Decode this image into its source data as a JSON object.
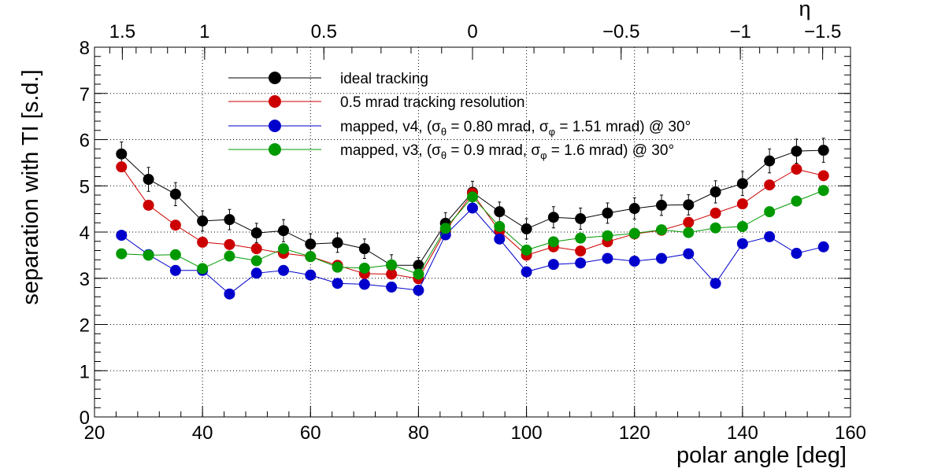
{
  "chart_data": {
    "type": "scatter",
    "xlabel": "polar angle [deg]",
    "ylabel": "separation with TI [s.d.]",
    "xlim": [
      20,
      160
    ],
    "ylim": [
      0,
      8
    ],
    "x_ticks": [
      "20",
      "40",
      "60",
      "80",
      "100",
      "120",
      "140",
      "160"
    ],
    "y_ticks": [
      "0",
      "1",
      "2",
      "3",
      "4",
      "5",
      "6",
      "7",
      "8"
    ],
    "grid": true,
    "legend_position": "top-center",
    "top_axis": {
      "label": "η",
      "ticks": [
        {
          "value": 1.5,
          "label": "1.5"
        },
        {
          "value": 1,
          "label": "1"
        },
        {
          "value": 0.5,
          "label": "0.5"
        },
        {
          "value": 0,
          "label": "0"
        },
        {
          "value": -0.5,
          "label": "−0.5"
        },
        {
          "value": -1,
          "label": "−1"
        },
        {
          "value": -1.5,
          "label": "−1.5"
        }
      ]
    },
    "x": [
      25,
      30,
      35,
      40,
      45,
      50,
      55,
      60,
      65,
      70,
      75,
      80,
      85,
      90,
      95,
      100,
      105,
      110,
      115,
      120,
      125,
      130,
      135,
      140,
      145,
      150,
      155
    ],
    "series": [
      {
        "name": "ideal tracking",
        "color": "#000000",
        "values": [
          5.69,
          5.14,
          4.82,
          4.24,
          4.27,
          3.98,
          4.03,
          3.74,
          3.77,
          3.64,
          3.28,
          3.28,
          4.19,
          4.86,
          4.44,
          4.07,
          4.32,
          4.29,
          4.41,
          4.51,
          4.58,
          4.59,
          4.87,
          5.05,
          5.54,
          5.75,
          5.77
        ],
        "errors": [
          0.26,
          0.26,
          0.25,
          0.22,
          0.22,
          0.21,
          0.24,
          0.22,
          0.21,
          0.21,
          0.23,
          0.17,
          0.23,
          0.24,
          0.21,
          0.22,
          0.23,
          0.23,
          0.22,
          0.23,
          0.22,
          0.22,
          0.24,
          0.26,
          0.26,
          0.26,
          0.26
        ]
      },
      {
        "name": "0.5 mrad tracking resolution",
        "color": "#cc0000",
        "values": [
          5.41,
          4.58,
          4.15,
          3.78,
          3.73,
          3.64,
          3.54,
          3.47,
          3.28,
          3.1,
          3.09,
          2.99,
          4.03,
          4.84,
          4.02,
          3.5,
          3.68,
          3.59,
          3.79,
          3.96,
          4.04,
          4.21,
          4.41,
          4.61,
          5.02,
          5.36,
          5.22
        ]
      },
      {
        "name": "mapped, v4, (σθ = 0.80 mrad, σφ = 1.51 mrad) @ 30°",
        "name_rich": [
          "mapped, v4, (σ",
          "θ",
          " = 0.80 mrad, σ",
          "φ",
          " = 1.51 mrad) @ 30°"
        ],
        "color": "#0000cc",
        "values": [
          3.93,
          3.51,
          3.17,
          3.17,
          2.66,
          3.11,
          3.17,
          3.07,
          2.89,
          2.87,
          2.81,
          2.74,
          3.94,
          4.52,
          3.85,
          3.14,
          3.3,
          3.33,
          3.43,
          3.37,
          3.43,
          3.53,
          2.89,
          3.75,
          3.9,
          3.54,
          3.68
        ]
      },
      {
        "name": "mapped, v3, (σθ = 0.9 mrad, σφ = 1.6 mrad) @ 30°",
        "name_rich": [
          "mapped, v3, (σ",
          "θ",
          " = 0.9 mrad, σ",
          "φ",
          " = 1.6 mrad) @ 30°"
        ],
        "color": "#009900",
        "values": [
          3.53,
          3.5,
          3.51,
          3.21,
          3.48,
          3.38,
          3.64,
          3.47,
          3.24,
          3.22,
          3.29,
          3.09,
          4.08,
          4.76,
          4.12,
          3.61,
          3.79,
          3.87,
          3.92,
          3.97,
          4.05,
          3.99,
          4.09,
          4.12,
          4.44,
          4.67,
          4.9
        ]
      }
    ]
  }
}
